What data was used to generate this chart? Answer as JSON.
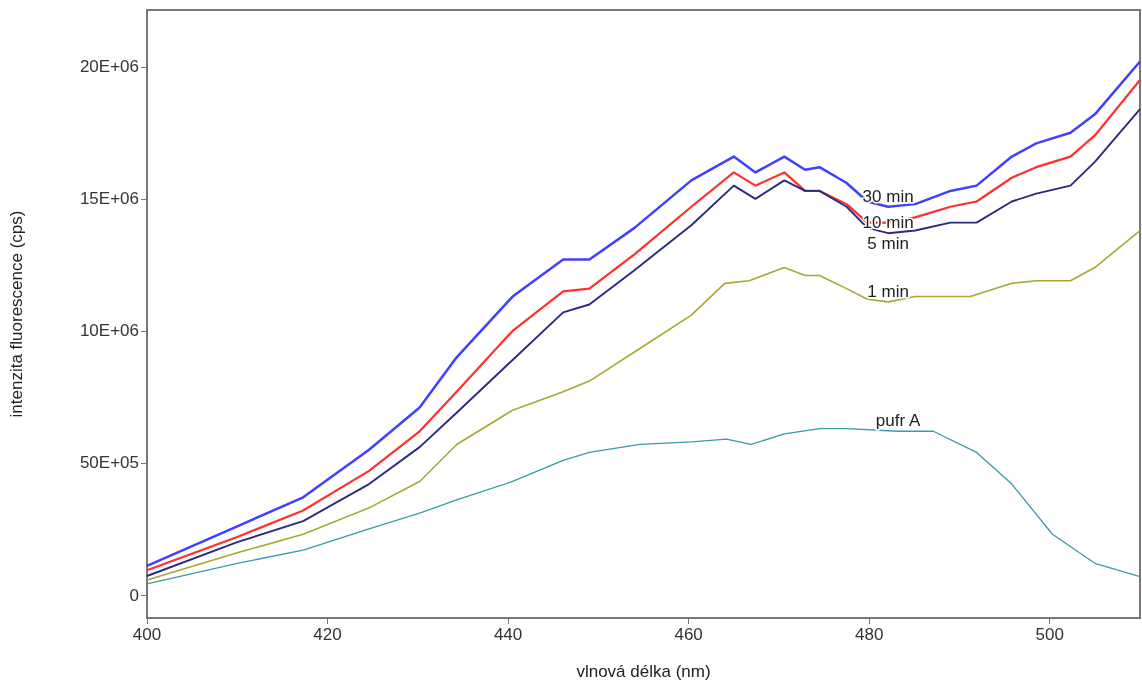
{
  "chart_data": {
    "type": "line",
    "xlabel": "vlnová délka (nm)",
    "ylabel": "intenzita fluorescence (cps)",
    "xlim": [
      400,
      510
    ],
    "xticks": [
      400,
      420,
      440,
      460,
      480,
      500
    ],
    "ylim": [
      -870000,
      22150000
    ],
    "yticks": [
      0,
      {
        "value": 5000000,
        "label": "50E+05"
      },
      {
        "value": 10000000,
        "label": "10E+06"
      },
      {
        "value": 15000000,
        "label": "15E+06"
      },
      {
        "value": 20000000,
        "label": "20E+06"
      }
    ],
    "grid": false,
    "legend": false,
    "series": [
      {
        "name": "30 min",
        "color": "#4040ff",
        "x": [
          400,
          410,
          417.3,
          424.6,
          430.2,
          434.3,
          440.5,
          446.1,
          449,
          454,
          460.3,
          465,
          467.4,
          470.6,
          472.9,
          474.5,
          477.5,
          479.8,
          482.1,
          485.1,
          489,
          491.9,
          495.8,
          498.5,
          502.3,
          505,
          510
        ],
        "values": [
          1100000,
          2600000,
          3700000,
          5500000,
          7100000,
          9000000,
          11300000,
          12700000,
          12700000,
          13900000,
          15700000,
          16600000,
          16000000,
          16600000,
          16100000,
          16200000,
          15600000,
          14900000,
          14700000,
          14800000,
          15300000,
          15500000,
          16600000,
          17100000,
          17500000,
          18200000,
          20200000
        ]
      },
      {
        "name": "10 min",
        "color": "#ff3030",
        "x": [
          400,
          410,
          417.3,
          424.6,
          430.2,
          434.3,
          440.5,
          446.1,
          449,
          454,
          460.3,
          465,
          467.4,
          470.6,
          472.9,
          474.5,
          477.5,
          479.8,
          482.1,
          485.1,
          489,
          491.9,
          495.8,
          498.5,
          502.3,
          505,
          510
        ],
        "values": [
          940000,
          2200000,
          3200000,
          4700000,
          6200000,
          7700000,
          10000000,
          11500000,
          11600000,
          12900000,
          14700000,
          16000000,
          15500000,
          16000000,
          15300000,
          15300000,
          14800000,
          14100000,
          14100000,
          14300000,
          14700000,
          14900000,
          15800000,
          16200000,
          16600000,
          17400000,
          19500000
        ]
      },
      {
        "name": "5 min",
        "color": "#2a2a80",
        "x": [
          400,
          410,
          417.3,
          424.6,
          430.2,
          434.3,
          440.5,
          446.1,
          449,
          454,
          460.3,
          465,
          467.4,
          470.6,
          472.9,
          474.5,
          477.5,
          479.8,
          482.1,
          485.1,
          489,
          491.9,
          495.8,
          498.5,
          502.3,
          505,
          510
        ],
        "values": [
          720000,
          2000000,
          2800000,
          4200000,
          5600000,
          6900000,
          8900000,
          10700000,
          11000000,
          12300000,
          14000000,
          15500000,
          15000000,
          15700000,
          15300000,
          15300000,
          14700000,
          13900000,
          13700000,
          13800000,
          14100000,
          14100000,
          14900000,
          15200000,
          15500000,
          16400000,
          18400000
        ]
      },
      {
        "name": "1 min",
        "color": "#a8a830",
        "x": [
          400,
          410,
          417.3,
          424.6,
          430.2,
          434.3,
          440.5,
          446.1,
          449,
          454,
          460.3,
          464,
          466.7,
          470.6,
          472.9,
          474.5,
          477.5,
          479.8,
          482.1,
          485.1,
          489,
          491.2,
          495.8,
          498.5,
          502.3,
          505,
          510
        ],
        "values": [
          570000,
          1600000,
          2300000,
          3300000,
          4300000,
          5700000,
          7000000,
          7700000,
          8100000,
          9200000,
          10600000,
          11800000,
          11900000,
          12400000,
          12100000,
          12100000,
          11600000,
          11200000,
          11100000,
          11300000,
          11300000,
          11300000,
          11800000,
          11900000,
          11900000,
          12400000,
          13800000
        ]
      },
      {
        "name": "pufr A",
        "color": "#3a9aa8",
        "x": [
          400,
          410,
          417.3,
          424.6,
          430.2,
          434.3,
          440.5,
          446.1,
          449,
          454.6,
          460.3,
          464.2,
          466.9,
          470.6,
          474.5,
          477.5,
          483.2,
          487.1,
          491.9,
          495.8,
          500.3,
          505,
          510
        ],
        "values": [
          420000,
          1200000,
          1700000,
          2500000,
          3100000,
          3600000,
          4300000,
          5100000,
          5400000,
          5700000,
          5800000,
          5900000,
          5700000,
          6100000,
          6300000,
          6300000,
          6200000,
          6200000,
          5400000,
          4200000,
          2300000,
          1200000,
          700000
        ]
      }
    ]
  }
}
